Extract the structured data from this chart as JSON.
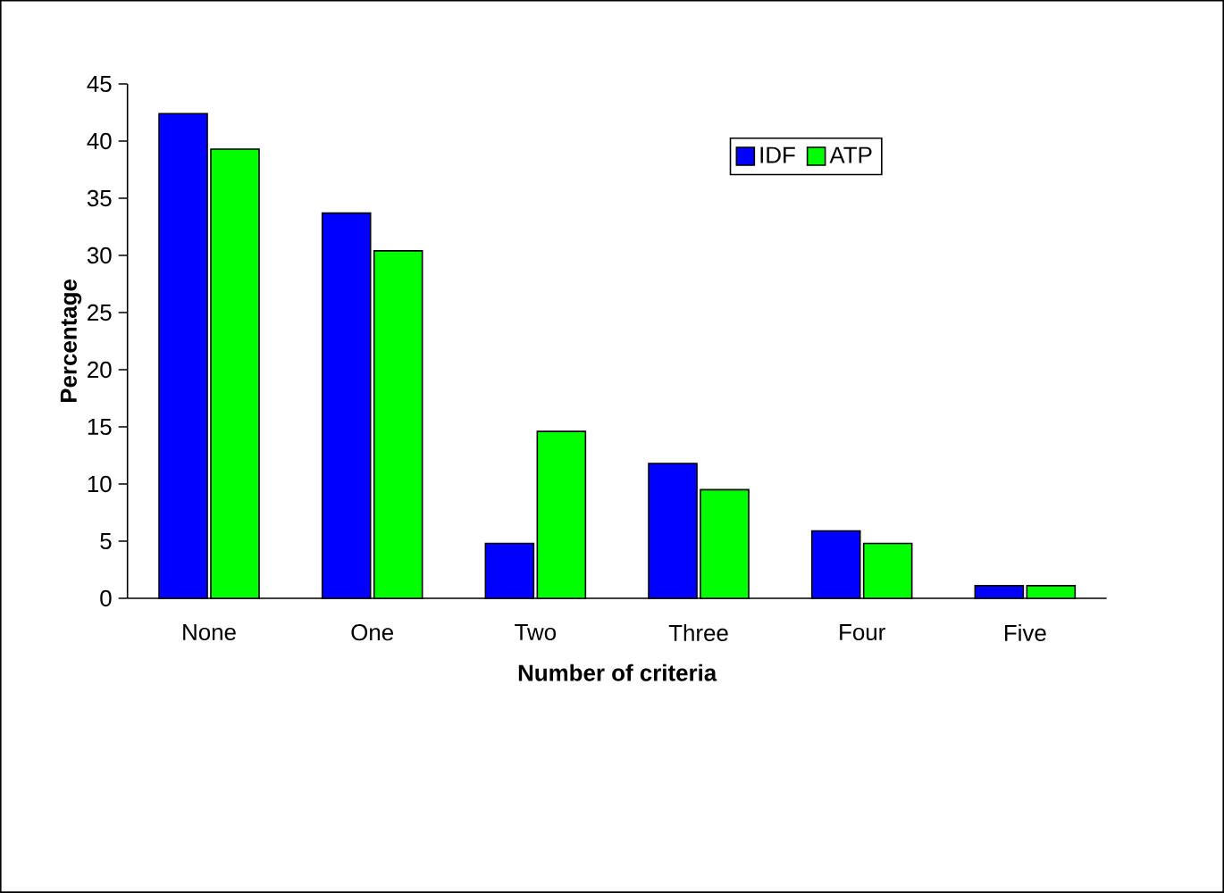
{
  "chart_data": {
    "type": "bar",
    "xlabel": "Number of criteria",
    "ylabel": "Percentage",
    "categories": [
      "None",
      "One",
      "Two",
      "Three",
      "Four",
      "Five"
    ],
    "series": [
      {
        "name": "IDF",
        "color": "#0000ff",
        "values": [
          42.4,
          33.7,
          4.8,
          11.8,
          5.9,
          1.1
        ]
      },
      {
        "name": "ATP",
        "color": "#00ff00",
        "values": [
          39.3,
          30.4,
          14.6,
          9.5,
          4.8,
          1.1
        ]
      }
    ],
    "ylim": [
      0,
      45
    ],
    "yticks": [
      0,
      5,
      10,
      15,
      20,
      25,
      30,
      35,
      40,
      45
    ],
    "grid": false,
    "legend": "top right"
  }
}
